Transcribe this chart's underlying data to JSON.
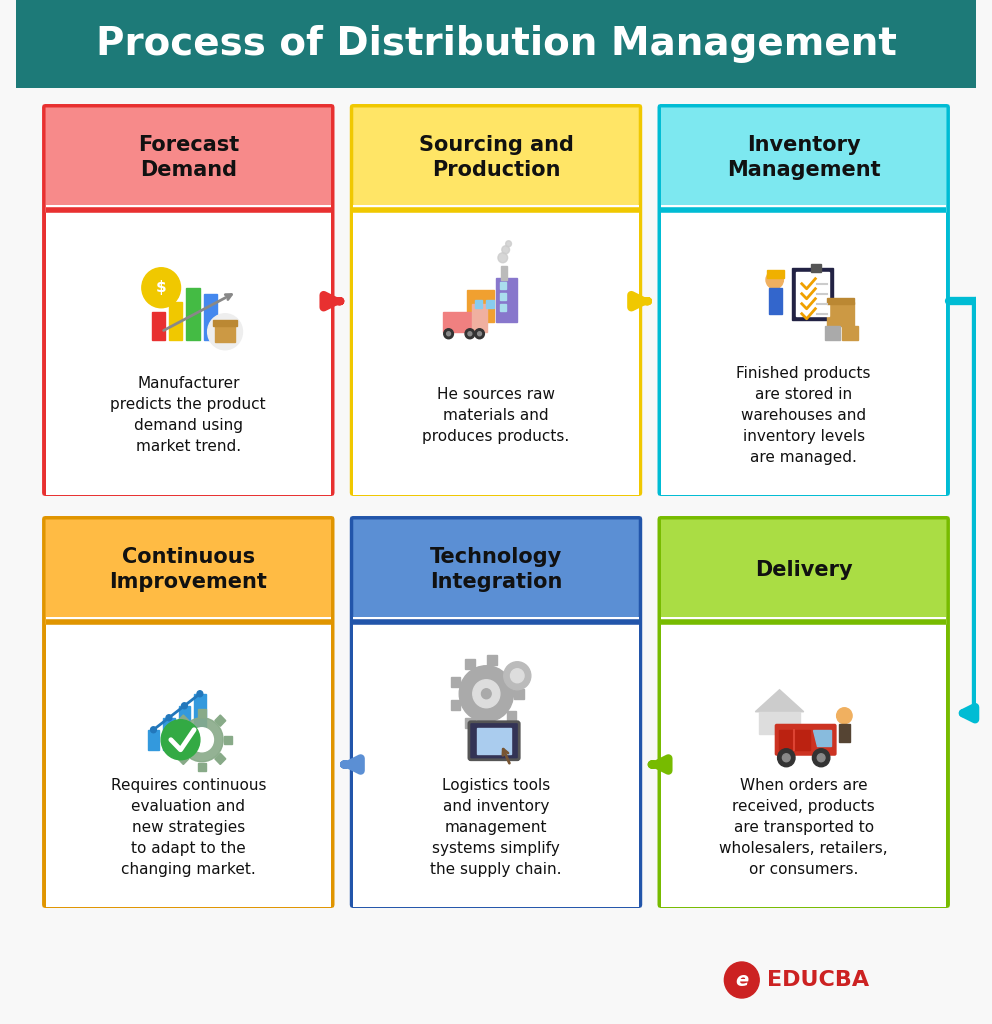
{
  "title": "Process of Distribution Management",
  "title_bg": "#1d7a78",
  "title_color": "#ffffff",
  "bg_color": "#f8f8f8",
  "cards": [
    {
      "id": 0,
      "title": "Forecast\nDemand",
      "header_color": "#f78a8a",
      "border_color": "#e83030",
      "text": "Manufacturer\npredicts the product\ndemand using\nmarket trend.",
      "row": 0,
      "col": 0
    },
    {
      "id": 1,
      "title": "Sourcing and\nProduction",
      "header_color": "#ffe566",
      "border_color": "#f0c800",
      "text": "He sources raw\nmaterials and\nproduces products.",
      "row": 0,
      "col": 1
    },
    {
      "id": 2,
      "title": "Inventory\nManagement",
      "header_color": "#7de8f0",
      "border_color": "#00bcd4",
      "text": "Finished products\nare stored in\nwarehouses and\ninventory levels\nare managed.",
      "row": 0,
      "col": 2
    },
    {
      "id": 3,
      "title": "Continuous\nImprovement",
      "header_color": "#ffbb44",
      "border_color": "#e09500",
      "text": "Requires continuous\nevaluation and\nnew strategies\nto adapt to the\nchanging market.",
      "row": 1,
      "col": 0
    },
    {
      "id": 4,
      "title": "Technology\nIntegration",
      "header_color": "#5b8fd4",
      "border_color": "#2255aa",
      "text": "Logistics tools\nand inventory\nmanagement\nsystems simplify\nthe supply chain.",
      "row": 1,
      "col": 1
    },
    {
      "id": 5,
      "title": "Delivery",
      "header_color": "#aadd44",
      "border_color": "#77bb00",
      "text": "When orders are\nreceived, products\nare transported to\nwholesalers, retailers,\nor consumers.",
      "row": 1,
      "col": 2
    }
  ]
}
